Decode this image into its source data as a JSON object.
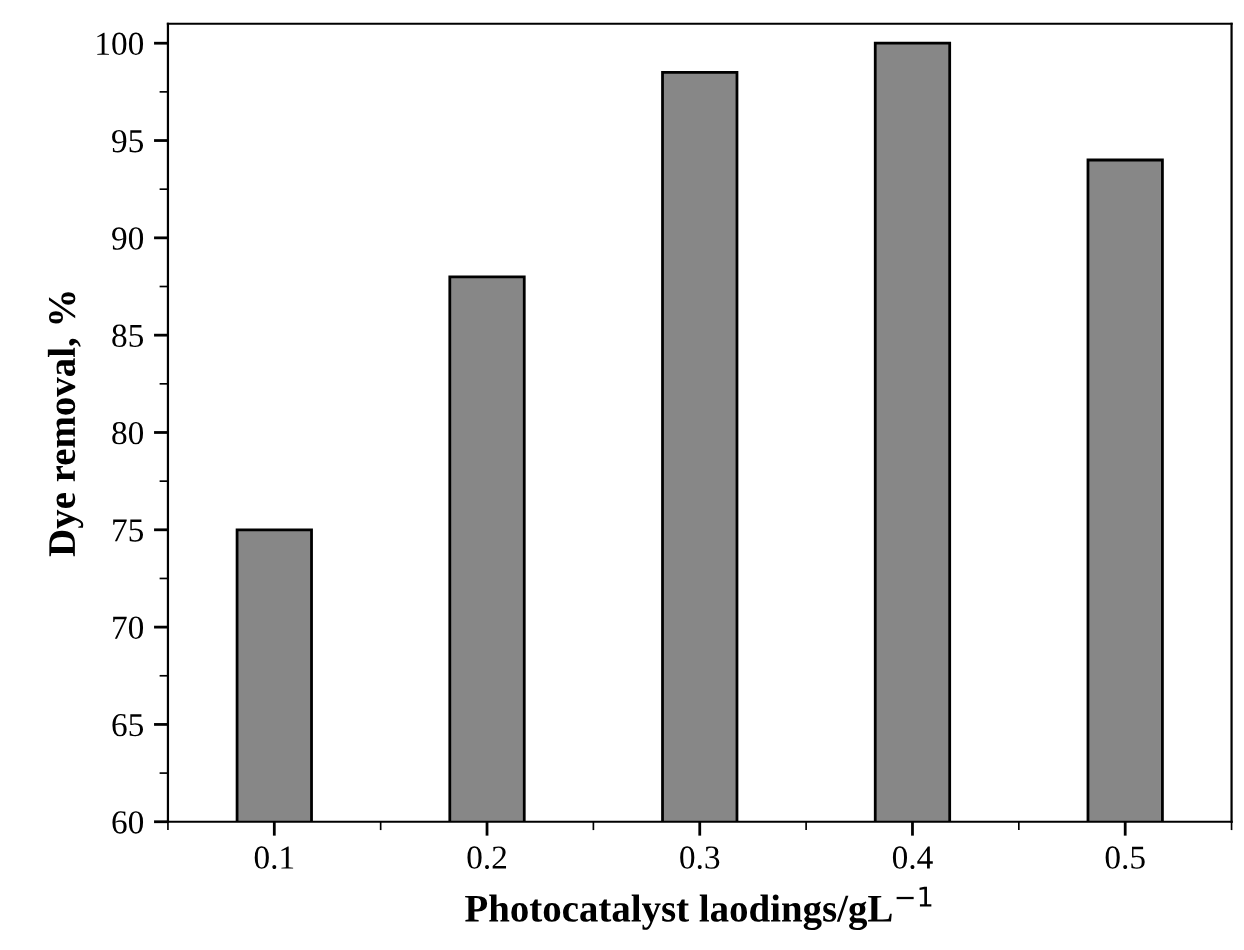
{
  "chart_data": {
    "type": "bar",
    "xlabel": "Photocatalyst laodings/gL$^{−1}$",
    "ylabel": "Dye removal, %",
    "x": [
      0.1,
      0.2,
      0.3,
      0.4,
      0.5
    ],
    "values": [
      75,
      88,
      98.5,
      100,
      94
    ],
    "color": "#878787",
    "xlim": [
      0.05,
      0.55
    ],
    "xticks": [
      0.1,
      0.2,
      0.3,
      0.4,
      0.5
    ],
    "ylim": [
      60,
      101
    ],
    "yticks": [
      60,
      65,
      70,
      75,
      80,
      85,
      90,
      95,
      100
    ],
    "grid": false,
    "legend": false
  }
}
